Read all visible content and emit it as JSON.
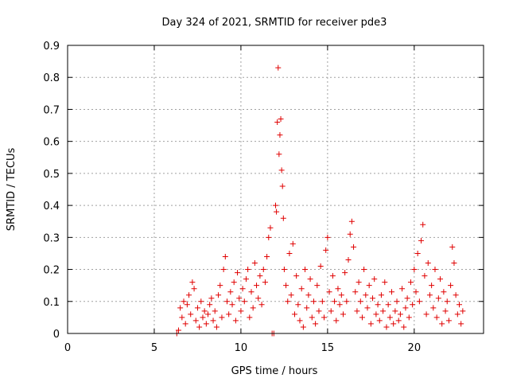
{
  "chart_data": {
    "type": "scatter",
    "title": "Day 324 of 2021, SRMTID for receiver pde3",
    "xlabel": "GPS time / hours",
    "ylabel": "SRMTID / TECUs",
    "xlim": [
      0,
      24
    ],
    "ylim": [
      0,
      0.9
    ],
    "xticks": [
      0,
      5,
      10,
      15,
      20
    ],
    "yticks": [
      0,
      0.1,
      0.2,
      0.3,
      0.4,
      0.5,
      0.6,
      0.7,
      0.8,
      0.9
    ],
    "grid": true,
    "marker": "plus",
    "color": "#e00000",
    "series": [
      {
        "name": "pde3",
        "points": [
          [
            6.3,
            0.0
          ],
          [
            6.4,
            0.01
          ],
          [
            6.5,
            0.08
          ],
          [
            6.6,
            0.05
          ],
          [
            6.7,
            0.1
          ],
          [
            6.8,
            0.03
          ],
          [
            6.9,
            0.09
          ],
          [
            7.0,
            0.12
          ],
          [
            7.1,
            0.06
          ],
          [
            7.2,
            0.16
          ],
          [
            7.3,
            0.14
          ],
          [
            7.4,
            0.04
          ],
          [
            7.5,
            0.08
          ],
          [
            7.6,
            0.02
          ],
          [
            7.7,
            0.1
          ],
          [
            7.8,
            0.05
          ],
          [
            7.9,
            0.07
          ],
          [
            8.0,
            0.03
          ],
          [
            8.1,
            0.06
          ],
          [
            8.2,
            0.09
          ],
          [
            8.3,
            0.11
          ],
          [
            8.4,
            0.04
          ],
          [
            8.5,
            0.07
          ],
          [
            8.6,
            0.02
          ],
          [
            8.7,
            0.12
          ],
          [
            8.8,
            0.15
          ],
          [
            8.9,
            0.05
          ],
          [
            9.0,
            0.2
          ],
          [
            9.1,
            0.24
          ],
          [
            9.2,
            0.1
          ],
          [
            9.3,
            0.06
          ],
          [
            9.4,
            0.13
          ],
          [
            9.5,
            0.09
          ],
          [
            9.6,
            0.16
          ],
          [
            9.7,
            0.04
          ],
          [
            9.8,
            0.19
          ],
          [
            9.9,
            0.11
          ],
          [
            10.0,
            0.07
          ],
          [
            10.1,
            0.14
          ],
          [
            10.2,
            0.1
          ],
          [
            10.3,
            0.17
          ],
          [
            10.4,
            0.2
          ],
          [
            10.5,
            0.05
          ],
          [
            10.6,
            0.13
          ],
          [
            10.7,
            0.08
          ],
          [
            10.8,
            0.22
          ],
          [
            10.9,
            0.15
          ],
          [
            11.0,
            0.11
          ],
          [
            11.1,
            0.18
          ],
          [
            11.2,
            0.09
          ],
          [
            11.3,
            0.2
          ],
          [
            11.4,
            0.16
          ],
          [
            11.5,
            0.24
          ],
          [
            11.6,
            0.3
          ],
          [
            11.7,
            0.33
          ],
          [
            11.8,
            0.0
          ],
          [
            11.9,
            0.0
          ],
          [
            12.0,
            0.4
          ],
          [
            12.05,
            0.38
          ],
          [
            12.1,
            0.66
          ],
          [
            12.15,
            0.83
          ],
          [
            12.2,
            0.56
          ],
          [
            12.25,
            0.62
          ],
          [
            12.3,
            0.67
          ],
          [
            12.35,
            0.51
          ],
          [
            12.4,
            0.46
          ],
          [
            12.45,
            0.36
          ],
          [
            12.5,
            0.2
          ],
          [
            12.6,
            0.15
          ],
          [
            12.7,
            0.1
          ],
          [
            12.8,
            0.25
          ],
          [
            12.9,
            0.12
          ],
          [
            13.0,
            0.28
          ],
          [
            13.1,
            0.06
          ],
          [
            13.2,
            0.18
          ],
          [
            13.3,
            0.09
          ],
          [
            13.4,
            0.04
          ],
          [
            13.5,
            0.14
          ],
          [
            13.6,
            0.02
          ],
          [
            13.7,
            0.2
          ],
          [
            13.8,
            0.08
          ],
          [
            13.9,
            0.12
          ],
          [
            14.0,
            0.17
          ],
          [
            14.1,
            0.05
          ],
          [
            14.2,
            0.1
          ],
          [
            14.3,
            0.03
          ],
          [
            14.4,
            0.15
          ],
          [
            14.5,
            0.07
          ],
          [
            14.6,
            0.21
          ],
          [
            14.7,
            0.1
          ],
          [
            14.8,
            0.05
          ],
          [
            14.9,
            0.26
          ],
          [
            15.0,
            0.3
          ],
          [
            15.1,
            0.13
          ],
          [
            15.2,
            0.07
          ],
          [
            15.3,
            0.18
          ],
          [
            15.4,
            0.1
          ],
          [
            15.5,
            0.04
          ],
          [
            15.6,
            0.14
          ],
          [
            15.7,
            0.09
          ],
          [
            15.8,
            0.12
          ],
          [
            15.9,
            0.06
          ],
          [
            16.0,
            0.19
          ],
          [
            16.1,
            0.1
          ],
          [
            16.2,
            0.23
          ],
          [
            16.3,
            0.31
          ],
          [
            16.4,
            0.35
          ],
          [
            16.5,
            0.27
          ],
          [
            16.6,
            0.13
          ],
          [
            16.7,
            0.07
          ],
          [
            16.8,
            0.16
          ],
          [
            16.9,
            0.1
          ],
          [
            17.0,
            0.05
          ],
          [
            17.1,
            0.2
          ],
          [
            17.2,
            0.12
          ],
          [
            17.3,
            0.08
          ],
          [
            17.4,
            0.15
          ],
          [
            17.5,
            0.03
          ],
          [
            17.6,
            0.11
          ],
          [
            17.7,
            0.17
          ],
          [
            17.8,
            0.06
          ],
          [
            17.9,
            0.09
          ],
          [
            18.0,
            0.04
          ],
          [
            18.1,
            0.12
          ],
          [
            18.2,
            0.07
          ],
          [
            18.3,
            0.16
          ],
          [
            18.4,
            0.02
          ],
          [
            18.5,
            0.09
          ],
          [
            18.6,
            0.05
          ],
          [
            18.7,
            0.13
          ],
          [
            18.8,
            0.03
          ],
          [
            18.9,
            0.07
          ],
          [
            19.0,
            0.1
          ],
          [
            19.1,
            0.04
          ],
          [
            19.2,
            0.06
          ],
          [
            19.3,
            0.14
          ],
          [
            19.4,
            0.02
          ],
          [
            19.5,
            0.08
          ],
          [
            19.6,
            0.11
          ],
          [
            19.7,
            0.05
          ],
          [
            19.8,
            0.16
          ],
          [
            19.9,
            0.09
          ],
          [
            20.0,
            0.2
          ],
          [
            20.1,
            0.13
          ],
          [
            20.2,
            0.25
          ],
          [
            20.3,
            0.1
          ],
          [
            20.4,
            0.29
          ],
          [
            20.5,
            0.34
          ],
          [
            20.6,
            0.18
          ],
          [
            20.7,
            0.06
          ],
          [
            20.8,
            0.22
          ],
          [
            20.9,
            0.12
          ],
          [
            21.0,
            0.15
          ],
          [
            21.1,
            0.08
          ],
          [
            21.2,
            0.2
          ],
          [
            21.3,
            0.05
          ],
          [
            21.4,
            0.11
          ],
          [
            21.5,
            0.17
          ],
          [
            21.6,
            0.03
          ],
          [
            21.7,
            0.13
          ],
          [
            21.8,
            0.07
          ],
          [
            21.9,
            0.1
          ],
          [
            22.0,
            0.04
          ],
          [
            22.1,
            0.15
          ],
          [
            22.2,
            0.27
          ],
          [
            22.3,
            0.22
          ],
          [
            22.4,
            0.12
          ],
          [
            22.5,
            0.06
          ],
          [
            22.6,
            0.09
          ],
          [
            22.7,
            0.03
          ],
          [
            22.8,
            0.07
          ]
        ]
      }
    ]
  }
}
